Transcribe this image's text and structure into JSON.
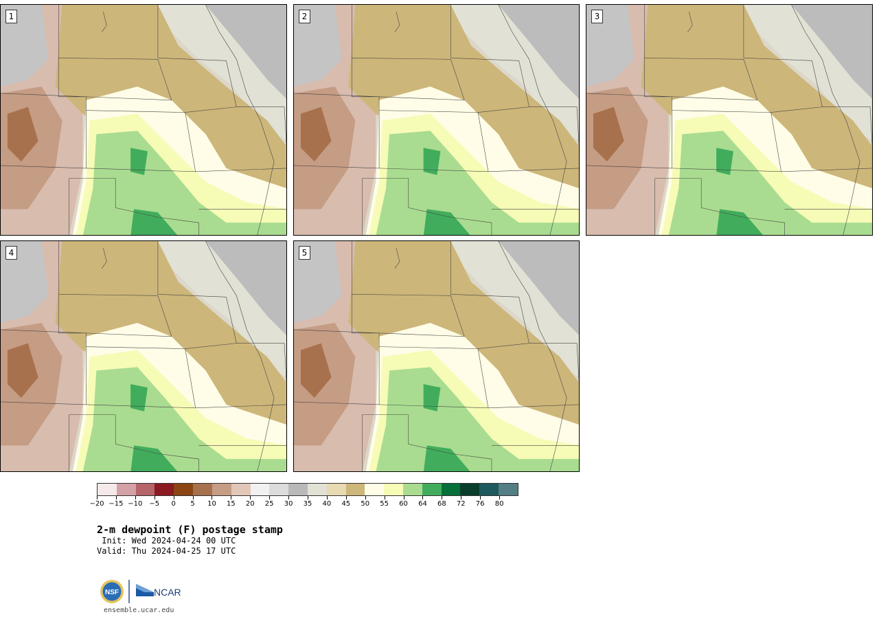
{
  "panels": [
    {
      "label": "1"
    },
    {
      "label": "2"
    },
    {
      "label": "3"
    },
    {
      "label": "4"
    },
    {
      "label": "5"
    }
  ],
  "colorbar": {
    "colors": [
      "#f5e9e9",
      "#d4a1a6",
      "#b5646a",
      "#8b1a22",
      "#8a4512",
      "#a8714d",
      "#c59c84",
      "#e2c7b8",
      "#f1f1f1",
      "#dcdcdc",
      "#b9b9b9",
      "#e1e1d5",
      "#e7d9b2",
      "#cdb67a",
      "#fffde7",
      "#f6fbb6",
      "#a9dc90",
      "#41ad5c",
      "#05703a",
      "#0a3d2b",
      "#1d5a5d",
      "#537e84"
    ],
    "tick_labels": [
      "−20",
      "−15",
      "−10",
      "−5",
      "0",
      "5",
      "10",
      "15",
      "20",
      "25",
      "30",
      "35",
      "40",
      "45",
      "50",
      "55",
      "60",
      "64",
      "68",
      "72",
      "76",
      "80"
    ]
  },
  "title": "2-m dewpoint (F) postage stamp",
  "init": " Init: Wed 2024-04-24 00 UTC",
  "valid": "Valid: Thu 2024-04-25 17 UTC",
  "logos": {
    "nsf": "NSF",
    "ncar": "NCAR"
  },
  "website": "ensemble.ucar.edu"
}
